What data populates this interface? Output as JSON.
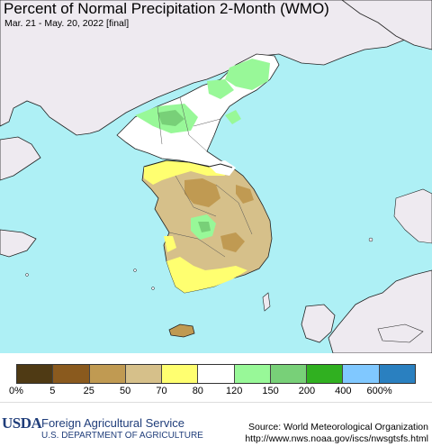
{
  "header": {
    "title": "Percent of Normal Precipitation 2-Month (WMO)",
    "subtitle": "Mar. 21 - May. 20, 2022 [final]"
  },
  "map": {
    "ocean_color": "#aef0f5",
    "land_color": "#eeeaf0",
    "region": "Korean Peninsula"
  },
  "legend": {
    "colors": [
      "#4f3a14",
      "#8a5a1e",
      "#c09a52",
      "#d6c08a",
      "#ffff70",
      "#ffffff",
      "#98f898",
      "#78d078",
      "#30b020",
      "#80c8ff",
      "#2a80c0"
    ],
    "labels": [
      "0%",
      "5",
      "25",
      "50",
      "70",
      "80",
      "120",
      "150",
      "200",
      "400",
      "600%"
    ]
  },
  "footer": {
    "logo_text": "USDA",
    "agency": "Foreign Agricultural Service",
    "department": "U.S. DEPARTMENT OF AGRICULTURE",
    "source": "Source: World Meteorological Organization",
    "url": "http://www.nws.noaa.gov/iscs/nwsgtsfs.html"
  }
}
